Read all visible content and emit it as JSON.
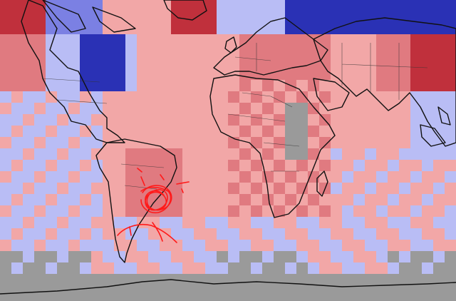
{
  "map": {
    "type": "temperature-anomaly-grid",
    "colors": {
      "strong_warm": "#c0303c",
      "warm": "#e07a80",
      "mild_warm": "#f2a7a7",
      "mild_cool": "#b9bdf5",
      "cool": "#7b80e3",
      "strong_cool": "#2a31b5",
      "no_data": "#9a9a9a",
      "coastline": "#111111",
      "borders": "#333333",
      "scribble": "#ff1a1a"
    }
  }
}
